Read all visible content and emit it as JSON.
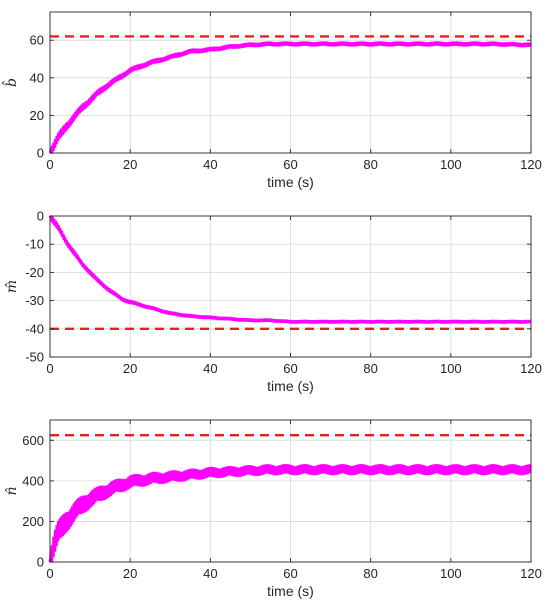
{
  "colors": {
    "estimate": "#ff00ff",
    "reference": "#e8201c",
    "axis": "#262626",
    "grid": "#d9d9d9"
  },
  "chart_data": [
    {
      "type": "line",
      "ylabel": "b̂",
      "xlabel": "time (s)",
      "xlim": [
        0,
        120
      ],
      "ylim": [
        0,
        75
      ],
      "x_ticks": [
        "0",
        "20",
        "40",
        "60",
        "80",
        "100",
        "120"
      ],
      "y_ticks": [
        "0",
        "20",
        "40",
        "60"
      ],
      "grid": true,
      "series": [
        {
          "style": "solid-oscillating",
          "color": "#ff00ff",
          "x": [
            0,
            2,
            4,
            6,
            8,
            10,
            12,
            15,
            18,
            20,
            25,
            30,
            35,
            40,
            45,
            50,
            55,
            60,
            70,
            80,
            90,
            100,
            110,
            120
          ],
          "y": [
            0,
            8,
            14,
            19,
            24,
            28,
            32,
            37,
            41,
            44,
            48,
            51,
            54,
            55,
            56.5,
            57.5,
            58,
            58,
            58,
            58,
            58,
            58,
            58,
            57.5
          ],
          "band": 3
        },
        {
          "style": "dashed",
          "color": "#e8201c",
          "x": [
            0,
            120
          ],
          "y": [
            62,
            62
          ]
        }
      ]
    },
    {
      "type": "line",
      "ylabel": "m̂",
      "xlabel": "time (s)",
      "xlim": [
        0,
        120
      ],
      "ylim": [
        -50,
        0
      ],
      "x_ticks": [
        "0",
        "20",
        "40",
        "60",
        "80",
        "100",
        "120"
      ],
      "y_ticks": [
        "0",
        "-10",
        "-20",
        "-30",
        "-40",
        "-50"
      ],
      "grid": true,
      "series": [
        {
          "style": "solid-oscillating",
          "color": "#ff00ff",
          "x": [
            0,
            2,
            4,
            6,
            8,
            10,
            12,
            15,
            18,
            20,
            25,
            30,
            35,
            40,
            45,
            50,
            55,
            60,
            70,
            80,
            90,
            100,
            110,
            120
          ],
          "y": [
            0,
            -4,
            -9,
            -13,
            -17,
            -20,
            -23,
            -26.5,
            -29.5,
            -30.5,
            -32.5,
            -34.5,
            -35.5,
            -36,
            -36.5,
            -37,
            -37,
            -37.5,
            -37.5,
            -37.5,
            -37.5,
            -37.5,
            -37.5,
            -37.5
          ],
          "band": 1.4
        },
        {
          "style": "dashed",
          "color": "#e8201c",
          "x": [
            0,
            120
          ],
          "y": [
            -40,
            -40
          ]
        }
      ]
    },
    {
      "type": "line",
      "ylabel": "n̂",
      "xlabel": "time (s)",
      "xlim": [
        0,
        120
      ],
      "ylim": [
        0,
        700
      ],
      "x_ticks": [
        "0",
        "20",
        "40",
        "60",
        "80",
        "100",
        "120"
      ],
      "y_ticks": [
        "0",
        "200",
        "400",
        "600"
      ],
      "grid": true,
      "series": [
        {
          "style": "solid-oscillating",
          "color": "#ff00ff",
          "x": [
            0,
            1,
            2,
            4,
            6,
            8,
            10,
            12,
            15,
            18,
            20,
            25,
            30,
            35,
            40,
            45,
            50,
            55,
            60,
            70,
            80,
            90,
            100,
            110,
            120
          ],
          "y": [
            0,
            90,
            140,
            200,
            245,
            280,
            310,
            330,
            360,
            380,
            395,
            410,
            420,
            430,
            440,
            445,
            450,
            455,
            455,
            455,
            455,
            455,
            455,
            455,
            455
          ],
          "band": 70
        },
        {
          "style": "dashed",
          "color": "#e8201c",
          "x": [
            0,
            120
          ],
          "y": [
            625,
            625
          ]
        }
      ]
    }
  ]
}
